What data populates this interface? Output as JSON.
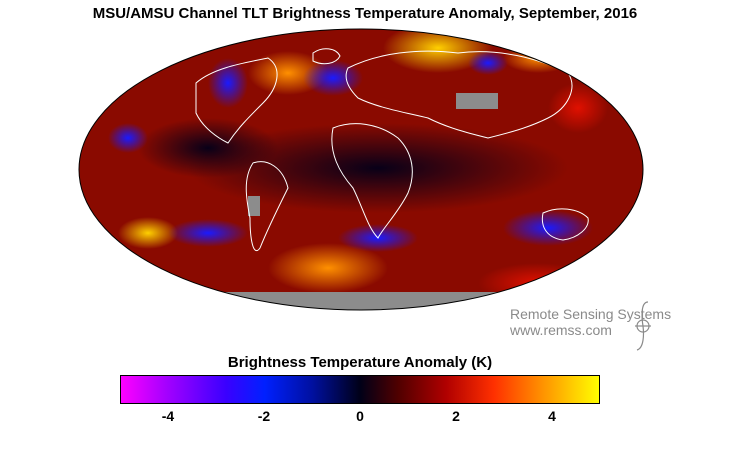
{
  "title": "MSU/AMSU Channel TLT Brightness Temperature Anomaly, September, 2016",
  "credit": {
    "name": "Remote Sensing Systems",
    "url": "www.remss.com"
  },
  "colorbar": {
    "title": "Brightness Temperature Anomaly (K)",
    "range": [
      -5,
      5
    ],
    "ticks": [
      {
        "label": "-4",
        "value": -4
      },
      {
        "label": "-2",
        "value": -2
      },
      {
        "label": "0",
        "value": 0
      },
      {
        "label": "2",
        "value": 2
      },
      {
        "label": "4",
        "value": 4
      }
    ]
  },
  "map": {
    "projection": "Mollweide",
    "missing_data_color": "#8c8c8c",
    "coastline_color": "#ffffff"
  }
}
